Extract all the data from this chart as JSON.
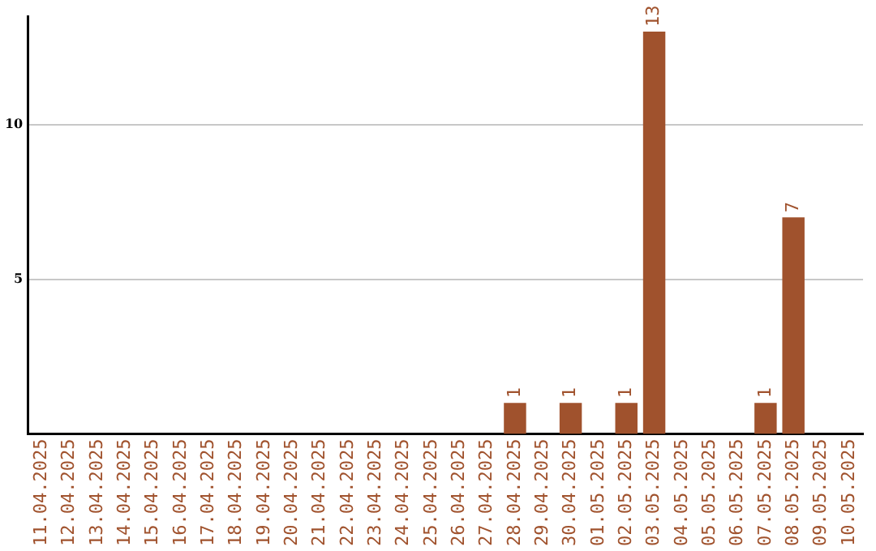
{
  "chart_data": {
    "type": "bar",
    "categories": [
      "11.04.2025",
      "12.04.2025",
      "13.04.2025",
      "14.04.2025",
      "15.04.2025",
      "16.04.2025",
      "17.04.2025",
      "18.04.2025",
      "19.04.2025",
      "20.04.2025",
      "21.04.2025",
      "22.04.2025",
      "23.04.2025",
      "24.04.2025",
      "25.04.2025",
      "26.04.2025",
      "27.04.2025",
      "28.04.2025",
      "29.04.2025",
      "30.04.2025",
      "01.05.2025",
      "02.05.2025",
      "03.05.2025",
      "04.05.2025",
      "05.05.2025",
      "06.05.2025",
      "07.05.2025",
      "08.05.2025",
      "09.05.2025",
      "10.05.2025"
    ],
    "values": [
      0,
      0,
      0,
      0,
      0,
      0,
      0,
      0,
      0,
      0,
      0,
      0,
      0,
      0,
      0,
      0,
      0,
      1,
      0,
      1,
      0,
      1,
      13,
      0,
      0,
      0,
      1,
      7,
      0,
      0
    ],
    "value_labels": [
      null,
      null,
      null,
      null,
      null,
      null,
      null,
      null,
      null,
      null,
      null,
      null,
      null,
      null,
      null,
      null,
      null,
      "1",
      null,
      "1",
      null,
      "1",
      "13",
      null,
      null,
      null,
      "1",
      "7",
      null,
      null
    ],
    "color": "#a0522d",
    "ylim": [
      0,
      13.5
    ],
    "yticks": [
      5,
      10
    ],
    "grid": "y",
    "legend": false
  }
}
